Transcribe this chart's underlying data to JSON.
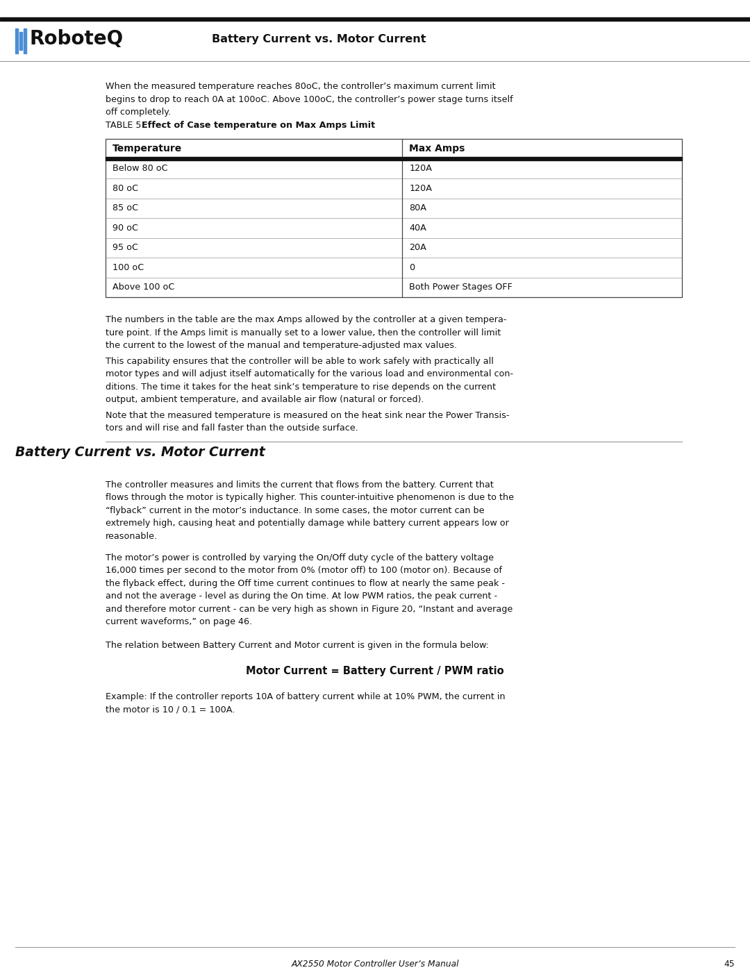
{
  "page_width": 10.8,
  "page_height": 13.97,
  "dpi": 100,
  "background_color": "#ffffff",
  "header_title": "Battery Current vs. Motor Current",
  "intro_paragraph": "When the measured temperature reaches 80oC, the controller’s maximum current limit\nbegins to drop to reach 0A at 100oC. Above 100oC, the controller’s power stage turns itself\noff completely.",
  "table_caption_normal": "TABLE 5. ",
  "table_caption_bold": "Effect of Case temperature on Max Amps Limit",
  "table_headers": [
    "Temperature",
    "Max Amps"
  ],
  "table_rows": [
    [
      "Below 80 oC",
      "120A"
    ],
    [
      "80 oC",
      "120A"
    ],
    [
      "85 oC",
      "80A"
    ],
    [
      "90 oC",
      "40A"
    ],
    [
      "95 oC",
      "20A"
    ],
    [
      "100 oC",
      "0"
    ],
    [
      "Above 100 oC",
      "Both Power Stages OFF"
    ]
  ],
  "para1": "The numbers in the table are the max Amps allowed by the controller at a given tempera-\nture point. If the Amps limit is manually set to a lower value, then the controller will limit\nthe current to the lowest of the manual and temperature-adjusted max values.",
  "para2": "This capability ensures that the controller will be able to work safely with practically all\nmotor types and will adjust itself automatically for the various load and environmental con-\nditions. The time it takes for the heat sink’s temperature to rise depends on the current\noutput, ambient temperature, and available air flow (natural or forced).",
  "para3": "Note that the measured temperature is measured on the heat sink near the Power Transis-\ntors and will rise and fall faster than the outside surface.",
  "section_title": "Battery Current vs. Motor Current",
  "section_para1": "The controller measures and limits the current that flows from the battery. Current that\nflows through the motor is typically higher. This counter-intuitive phenomenon is due to the\n“flyback” current in the motor’s inductance. In some cases, the motor current can be\nextremely high, causing heat and potentially damage while battery current appears low or\nreasonable.",
  "section_para2": "The motor’s power is controlled by varying the On/Off duty cycle of the battery voltage\n16,000 times per second to the motor from 0% (motor off) to 100 (motor on). Because of\nthe flyback effect, during the Off time current continues to flow at nearly the same peak -\nand not the average - level as during the On time. At low PWM ratios, the peak current -\nand therefore motor current - can be very high as shown in Figure 20, “Instant and average\ncurrent waveforms,” on page 46.",
  "formula_intro": "The relation between Battery Current and Motor current is given in the formula below:",
  "formula": "Motor Current = Battery Current / PWM ratio",
  "example_text": "Example: If the controller reports 10A of battery current while at 10% PWM, the current in\nthe motor is 10 / 0.1 = 100A.",
  "footer_text": "AX2550 Motor Controller User’s Manual",
  "footer_page": "45",
  "col1_pct": 0.515
}
